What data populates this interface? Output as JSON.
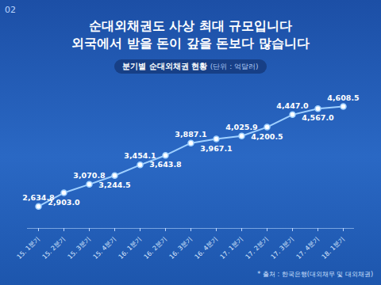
{
  "chart_data": {
    "type": "line",
    "page_number": "02",
    "title": "순대외채권도 사상 최대 규모입니다",
    "subtitle": "외국에서 받을 돈이 갚을 돈보다 많습니다",
    "chart_label": "분기별 순대외채권 현황",
    "unit": "(단위 : 억달러)",
    "source": "* 출처 : 한국은행(대외채무 및 대외채권)",
    "categories": [
      "15. 1분기",
      "15. 2분기",
      "15. 3분기",
      "15. 4분기",
      "16. 1분기",
      "16. 2분기",
      "16. 3분기",
      "16. 4분기",
      "17. 1분기",
      "17. 2분기",
      "17. 3분기",
      "17. 4분기",
      "18. 1분기"
    ],
    "values": [
      2634.8,
      2903.0,
      3070.8,
      3244.5,
      3454.1,
      3643.8,
      3887.1,
      3967.1,
      4025.9,
      4200.5,
      4447.0,
      4567.0,
      4608.5
    ],
    "value_labels": [
      "2,634.8",
      "2,903.0",
      "3,070.8",
      "3,244.5",
      "3,454.1",
      "3,643.8",
      "3,887.1",
      "3,967.1",
      "4,025.9",
      "4,200.5",
      "4,447.0",
      "4,567.0",
      "4,608.5"
    ],
    "data_labels": true,
    "color": "#9fd0ff",
    "marker": "circle",
    "ylim": [
      2200,
      5000
    ],
    "grid": false,
    "tick_labels": "x"
  }
}
